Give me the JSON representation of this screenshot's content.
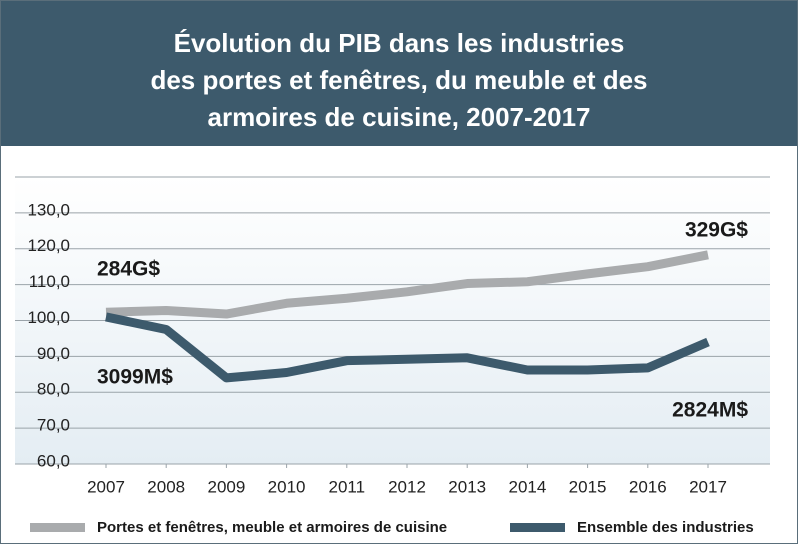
{
  "chart_data": {
    "type": "line",
    "title": [
      "Évolution du PIB dans les industries",
      "des portes et fenêtres, du meuble et des",
      "armoires de cuisine, 2007-2017"
    ],
    "x": [
      2007,
      2008,
      2009,
      2010,
      2011,
      2012,
      2013,
      2014,
      2015,
      2016,
      2017
    ],
    "xlim": [
      2007,
      2017
    ],
    "xticks": [
      2007,
      2008,
      2009,
      2010,
      2011,
      2012,
      2013,
      2014,
      2015,
      2016,
      2017
    ],
    "ylim": [
      60,
      140
    ],
    "yticks": [
      {
        "value": 60,
        "label": "60,0"
      },
      {
        "value": 70,
        "label": "70,0"
      },
      {
        "value": 80,
        "label": "80,0"
      },
      {
        "value": 90,
        "label": "90,0"
      },
      {
        "value": 100,
        "label": "100,0"
      },
      {
        "value": 110,
        "label": "110,0"
      },
      {
        "value": 120,
        "label": "120,0"
      },
      {
        "value": 130,
        "label": "130,0"
      }
    ],
    "grid": true,
    "series": [
      {
        "name": "Portes et fenêtres, meuble et armoires de cuisine",
        "color": "#a9abad",
        "values": [
          102.3,
          102.8,
          101.8,
          104.8,
          106.2,
          108,
          110.3,
          110.8,
          113,
          115,
          118.3
        ]
      },
      {
        "name": "Ensemble des industries",
        "color": "#3d5a6c",
        "values": [
          101,
          97.5,
          84,
          85.5,
          88.8,
          89.2,
          89.6,
          86.2,
          86.2,
          86.8,
          94
        ]
      }
    ],
    "annotations": [
      "284G$",
      "329G$",
      "3099M$",
      "2824M$"
    ]
  }
}
